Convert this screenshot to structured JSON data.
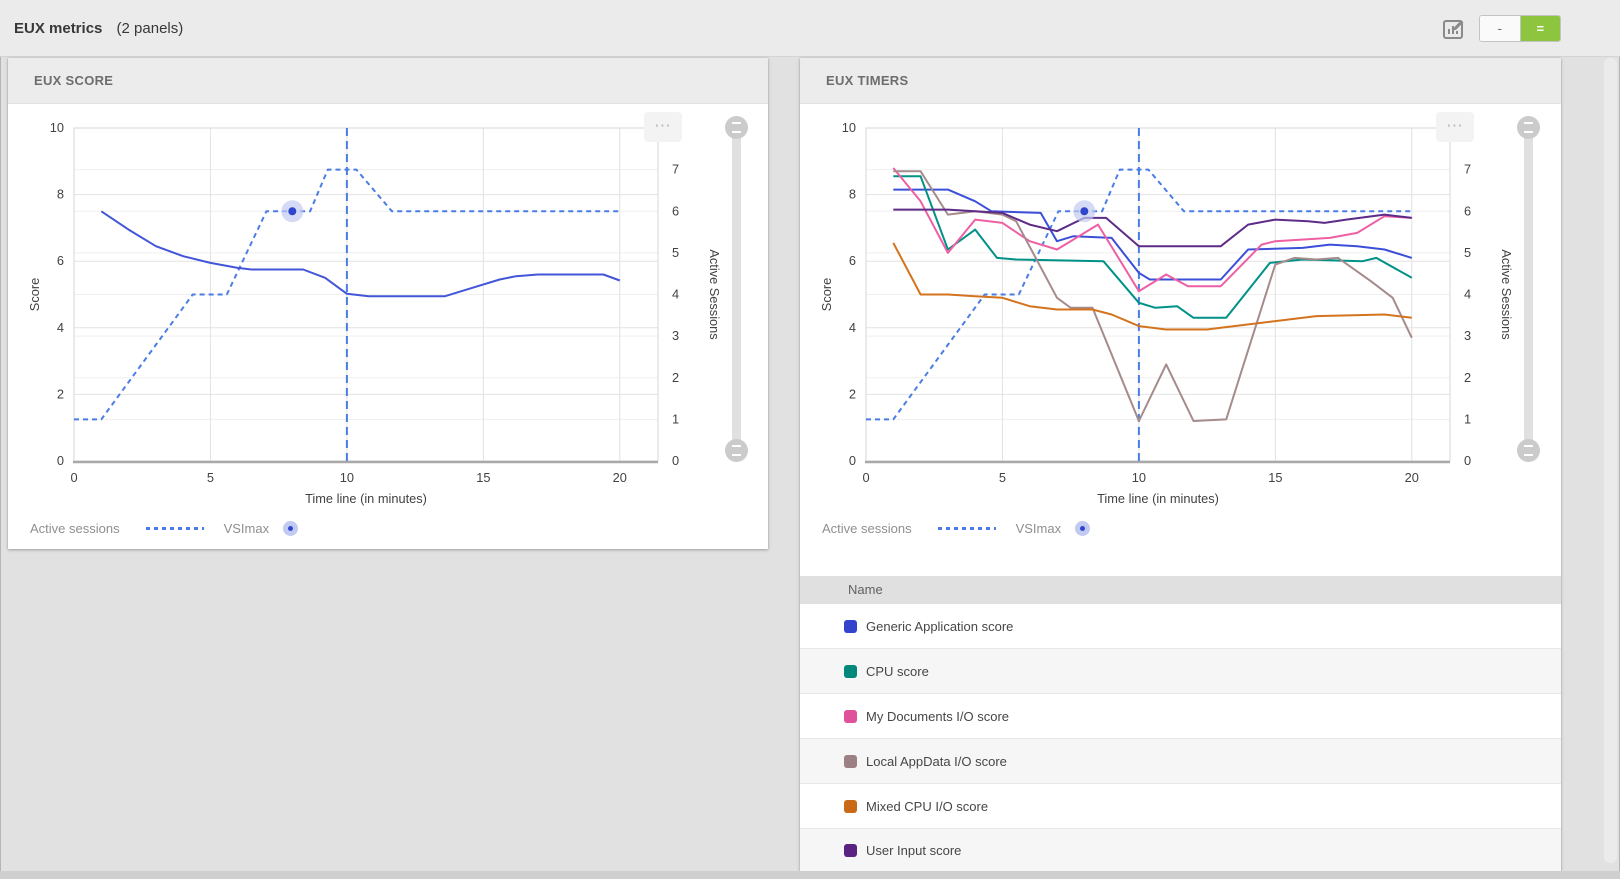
{
  "topbar": {
    "title": "EUX metrics",
    "panels_count": "(2 panels)",
    "minimize_label": "-",
    "equal_label": "=",
    "accent_green": "#8dc53e"
  },
  "legend": {
    "active_sessions_label": "Active sessions",
    "vsimax_label": "VSImax"
  },
  "right_panel": {
    "table": {
      "header": "Name",
      "rows": [
        {
          "label": "Generic Application score",
          "color": "#3443cb"
        },
        {
          "label": "CPU score",
          "color": "#00897b"
        },
        {
          "label": "My Documents I/O score",
          "color": "#e0519c"
        },
        {
          "label": "Local AppData I/O score",
          "color": "#9d8083"
        },
        {
          "label": "Mixed CPU I/O score",
          "color": "#c96a16"
        },
        {
          "label": "User Input score",
          "color": "#5a2382"
        }
      ]
    }
  },
  "chart_data": [
    {
      "type": "line",
      "panel_title": "EUX SCORE",
      "xlabel": "Time line (in minutes)",
      "ylabel_left": "Score",
      "ylabel_right": "Active Sessions",
      "xlim": [
        0,
        21.4
      ],
      "ylim_left": [
        0,
        10
      ],
      "ylim_right": [
        0,
        8
      ],
      "x_ticks": [
        0,
        5,
        10,
        15,
        20
      ],
      "y_ticks_left": [
        0,
        2,
        4,
        6,
        8,
        10
      ],
      "y_ticks_right": [
        0,
        1,
        2,
        3,
        4,
        5,
        6,
        7,
        8
      ],
      "grid": true,
      "legend_position": "bottom",
      "vsimax_line_x": 10,
      "vsimax_marker": {
        "x": 8,
        "sessions": 6
      },
      "marker_color": "#2f46cc",
      "halo_color": "#c3caf2",
      "series": [
        {
          "name": "Active sessions",
          "axis": "right",
          "color": "#4a7de4",
          "dash": true,
          "points": [
            [
              0,
              1
            ],
            [
              1,
              1
            ],
            [
              4.35,
              4
            ],
            [
              5.6,
              4
            ],
            [
              7.05,
              6
            ],
            [
              8.65,
              6
            ],
            [
              9.3,
              7
            ],
            [
              10.35,
              7
            ],
            [
              11.65,
              6
            ],
            [
              20,
              6
            ]
          ]
        },
        {
          "name": "EUX score",
          "axis": "left",
          "color": "#4355d8",
          "dash": false,
          "points": [
            [
              1,
              7.5
            ],
            [
              2,
              6.95
            ],
            [
              3,
              6.45
            ],
            [
              4,
              6.15
            ],
            [
              5,
              5.95
            ],
            [
              6,
              5.8
            ],
            [
              6.5,
              5.75
            ],
            [
              8.4,
              5.75
            ],
            [
              9.2,
              5.5
            ],
            [
              10,
              5.02
            ],
            [
              10.8,
              4.95
            ],
            [
              13.6,
              4.95
            ],
            [
              14.6,
              5.2
            ],
            [
              15.6,
              5.45
            ],
            [
              16.2,
              5.55
            ],
            [
              17,
              5.6
            ],
            [
              19.4,
              5.6
            ],
            [
              20,
              5.42
            ]
          ]
        }
      ]
    },
    {
      "type": "line",
      "panel_title": "EUX TIMERS",
      "xlabel": "Time line (in minutes)",
      "ylabel_left": "Score",
      "ylabel_right": "Active Sessions",
      "xlim": [
        0,
        21.4
      ],
      "ylim_left": [
        0,
        10
      ],
      "ylim_right": [
        0,
        8
      ],
      "x_ticks": [
        0,
        5,
        10,
        15,
        20
      ],
      "y_ticks_left": [
        0,
        2,
        4,
        6,
        8,
        10
      ],
      "y_ticks_right": [
        0,
        1,
        2,
        3,
        4,
        5,
        6,
        7,
        8
      ],
      "grid": true,
      "legend_position": "bottom",
      "vsimax_line_x": 10,
      "vsimax_marker": {
        "x": 8,
        "sessions": 6
      },
      "marker_color": "#2f46cc",
      "halo_color": "#c3caf2",
      "series": [
        {
          "name": "Active sessions",
          "axis": "right",
          "color": "#4a7de4",
          "dash": true,
          "points": [
            [
              0,
              1
            ],
            [
              1,
              1
            ],
            [
              4.35,
              4
            ],
            [
              5.6,
              4
            ],
            [
              7.05,
              6
            ],
            [
              8.65,
              6
            ],
            [
              9.3,
              7
            ],
            [
              10.35,
              7
            ],
            [
              11.65,
              6
            ],
            [
              20,
              6
            ]
          ]
        },
        {
          "name": "Generic Application score",
          "axis": "left",
          "color": "#3b4fd8",
          "dash": false,
          "points": [
            [
              1,
              8.15
            ],
            [
              3,
              8.15
            ],
            [
              4,
              7.8
            ],
            [
              4.6,
              7.5
            ],
            [
              6.4,
              7.45
            ],
            [
              7,
              6.6
            ],
            [
              7.6,
              6.75
            ],
            [
              9,
              6.7
            ],
            [
              10,
              5.65
            ],
            [
              10.4,
              5.45
            ],
            [
              13,
              5.45
            ],
            [
              14,
              6.35
            ],
            [
              16,
              6.4
            ],
            [
              17,
              6.5
            ],
            [
              18,
              6.45
            ],
            [
              19,
              6.35
            ],
            [
              20,
              6.1
            ]
          ]
        },
        {
          "name": "CPU score",
          "axis": "left",
          "color": "#009187",
          "dash": false,
          "points": [
            [
              1,
              8.55
            ],
            [
              2,
              8.55
            ],
            [
              3,
              6.35
            ],
            [
              4,
              6.95
            ],
            [
              4.8,
              6.1
            ],
            [
              5.5,
              6.05
            ],
            [
              8.7,
              6.0
            ],
            [
              10,
              4.75
            ],
            [
              10.6,
              4.6
            ],
            [
              11.4,
              4.65
            ],
            [
              12,
              4.3
            ],
            [
              13.2,
              4.3
            ],
            [
              14.8,
              5.95
            ],
            [
              16,
              6.05
            ],
            [
              18.2,
              6.0
            ],
            [
              18.7,
              6.1
            ],
            [
              20,
              5.5
            ]
          ]
        },
        {
          "name": "My Documents I/O score",
          "axis": "left",
          "color": "#ee5fa4",
          "dash": false,
          "points": [
            [
              1,
              8.8
            ],
            [
              2,
              7.8
            ],
            [
              3,
              6.25
            ],
            [
              4,
              7.25
            ],
            [
              5,
              7.15
            ],
            [
              6,
              6.6
            ],
            [
              7,
              6.35
            ],
            [
              8.5,
              7.1
            ],
            [
              10,
              5.1
            ],
            [
              11,
              5.6
            ],
            [
              11.8,
              5.25
            ],
            [
              13,
              5.25
            ],
            [
              14.5,
              6.5
            ],
            [
              15,
              6.6
            ],
            [
              17,
              6.7
            ],
            [
              18,
              6.85
            ],
            [
              19,
              7.35
            ],
            [
              20,
              7.3
            ]
          ]
        },
        {
          "name": "Local AppData I/O score",
          "axis": "left",
          "color": "#a58b8b",
          "dash": false,
          "points": [
            [
              1,
              8.7
            ],
            [
              2,
              8.7
            ],
            [
              3,
              7.4
            ],
            [
              4,
              7.5
            ],
            [
              5,
              7.4
            ],
            [
              5.5,
              7.2
            ],
            [
              7,
              4.9
            ],
            [
              7.5,
              4.6
            ],
            [
              8.3,
              4.6
            ],
            [
              10,
              1.2
            ],
            [
              11,
              2.9
            ],
            [
              12,
              1.2
            ],
            [
              13.2,
              1.25
            ],
            [
              15,
              5.9
            ],
            [
              15.7,
              6.1
            ],
            [
              16.5,
              6.05
            ],
            [
              17.3,
              6.1
            ],
            [
              18.5,
              5.4
            ],
            [
              19.3,
              4.9
            ],
            [
              20,
              3.7
            ]
          ]
        },
        {
          "name": "Mixed CPU I/O score",
          "axis": "left",
          "color": "#d4731e",
          "dash": false,
          "points": [
            [
              1,
              6.55
            ],
            [
              2,
              5.0
            ],
            [
              3,
              5.0
            ],
            [
              4,
              4.95
            ],
            [
              5,
              4.9
            ],
            [
              6,
              4.65
            ],
            [
              7,
              4.55
            ],
            [
              8.3,
              4.55
            ],
            [
              9,
              4.4
            ],
            [
              10,
              4.05
            ],
            [
              11,
              3.95
            ],
            [
              12.5,
              3.95
            ],
            [
              13,
              4.0
            ],
            [
              15,
              4.2
            ],
            [
              16.5,
              4.35
            ],
            [
              19,
              4.4
            ],
            [
              20,
              4.3
            ]
          ]
        },
        {
          "name": "User Input score",
          "axis": "left",
          "color": "#5d2b88",
          "dash": false,
          "points": [
            [
              1,
              7.55
            ],
            [
              3,
              7.55
            ],
            [
              5,
              7.45
            ],
            [
              6,
              7.1
            ],
            [
              7,
              6.9
            ],
            [
              8,
              7.3
            ],
            [
              8.8,
              7.3
            ],
            [
              10,
              6.45
            ],
            [
              13,
              6.45
            ],
            [
              14,
              7.1
            ],
            [
              15,
              7.25
            ],
            [
              16.2,
              7.2
            ],
            [
              16.8,
              7.15
            ],
            [
              17.6,
              7.25
            ],
            [
              19,
              7.4
            ],
            [
              20,
              7.3
            ]
          ]
        }
      ]
    }
  ]
}
